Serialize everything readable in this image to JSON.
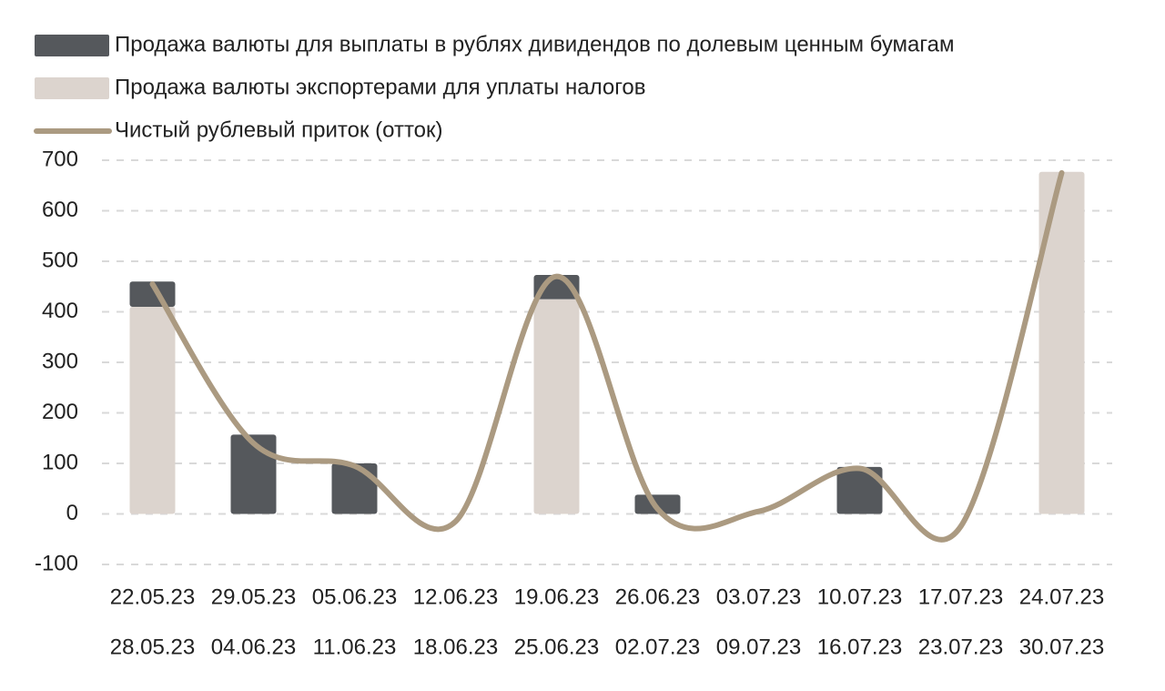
{
  "chart_data": {
    "type": "bar",
    "categories": [
      [
        "22.05.23",
        "28.05.23"
      ],
      [
        "29.05.23",
        "04.06.23"
      ],
      [
        "05.06.23",
        "11.06.23"
      ],
      [
        "12.06.23",
        "18.06.23"
      ],
      [
        "19.06.23",
        "25.06.23"
      ],
      [
        "26.06.23",
        "02.07.23"
      ],
      [
        "03.07.23",
        "09.07.23"
      ],
      [
        "10.07.23",
        "16.07.23"
      ],
      [
        "17.07.23",
        "23.07.23"
      ],
      [
        "24.07.23",
        "30.07.23"
      ]
    ],
    "series": [
      {
        "name": "Продажа валюты для выплаты в рублях дивидендов по долевым ценным бумагам",
        "type": "bar",
        "color": "#55585c",
        "values": [
          50,
          157,
          100,
          null,
          48,
          38,
          null,
          93,
          null,
          null
        ]
      },
      {
        "name": "Продажа валюты экспортерами для уплаты налогов",
        "type": "bar",
        "color": "#dcd4ce",
        "values": [
          410,
          null,
          null,
          null,
          425,
          null,
          null,
          null,
          null,
          677
        ]
      },
      {
        "name": "Чистый рублевый приток (отток)",
        "type": "line",
        "color": "#ab9a81",
        "values": [
          455,
          140,
          95,
          -15,
          470,
          10,
          5,
          90,
          -25,
          675
        ]
      }
    ],
    "stacked": true,
    "ylim": [
      -100,
      700
    ],
    "yticks": [
      -100,
      0,
      100,
      200,
      300,
      400,
      500,
      600,
      700
    ],
    "grid": true
  }
}
